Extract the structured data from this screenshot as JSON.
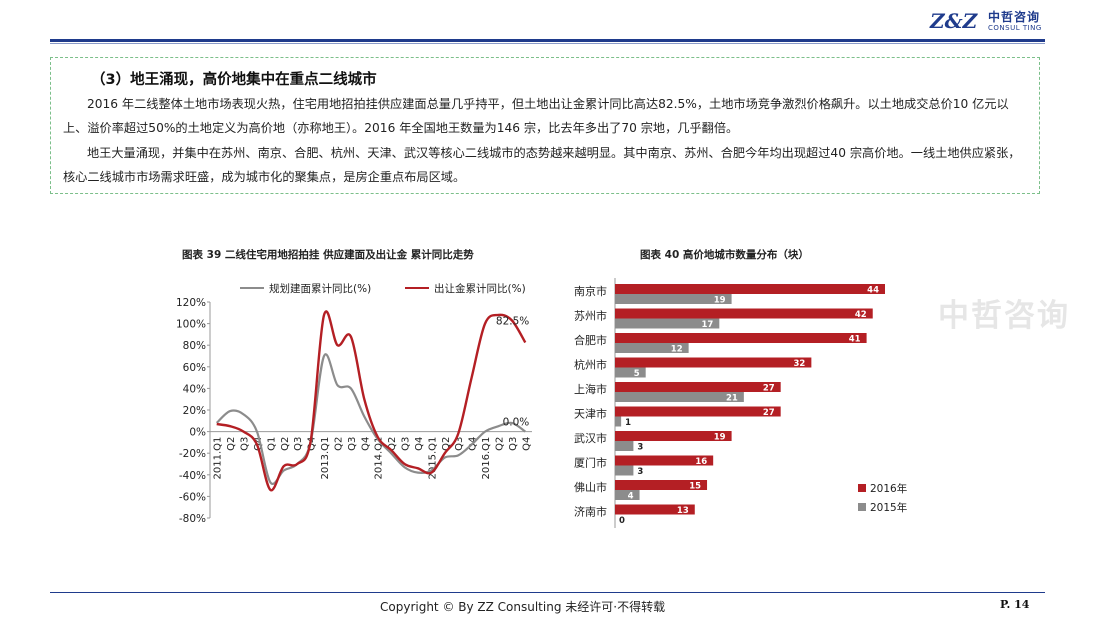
{
  "header": {
    "logo_mark": "Z&Z",
    "logo_cn": "中哲咨询",
    "logo_en": "CONSUL TING"
  },
  "section": {
    "heading": "（3）地王涌现，高价地集中在重点二线城市",
    "paragraph1": "2016 年二线整体土地市场表现火热，住宅用地招拍挂供应建面总量几乎持平，但土地出让金累计同比高达82.5%，土地市场竞争激烈价格飙升。以土地成交总价10 亿元以上、溢价率超过50%的土地定义为高价地（亦称地王）。2016 年全国地王数量为146 宗，比去年多出了70 宗地，几乎翻倍。",
    "paragraph2": "地王大量涌现，并集中在苏州、南京、合肥、杭州、天津、武汉等核心二线城市的态势越来越明显。其中南京、苏州、合肥今年均出现超过40 宗高价地。一线土地供应紧张，核心二线城市市场需求旺盛，成为城市化的聚集点，是房企重点布局区域。"
  },
  "watermark": "中哲咨询",
  "footer": {
    "copyright": "Copyright © By  ZZ Consulting       未经许可·不得转载",
    "page": "P. 14"
  },
  "colors": {
    "red": "#b41f24",
    "gray": "#8c8c8c",
    "navy": "#1f3b8c"
  },
  "chart_data": [
    {
      "type": "line",
      "title": "图表 39  二线住宅用地招拍挂 供应建面及出让金  累计同比走势",
      "y_ticks": [
        "120%",
        "100%",
        "80%",
        "60%",
        "40%",
        "20%",
        "0%",
        "-20%",
        "-40%",
        "-60%",
        "-80%"
      ],
      "ylim": [
        -80,
        120
      ],
      "x_tick_labels": [
        "2011.Q1",
        "Q2",
        "Q3",
        "Q4",
        "Q1",
        "Q2",
        "Q3",
        "Q4",
        "2013.Q1",
        "Q2",
        "Q3",
        "Q4",
        "2014.Q1",
        "Q2",
        "Q3",
        "Q4",
        "2015.Q1",
        "Q2",
        "Q3",
        "Q4",
        "2016.Q1",
        "Q2",
        "Q3",
        "Q4"
      ],
      "series": [
        {
          "name": "规划建面累计同比(%)",
          "color": "#8c8c8c",
          "values": [
            8,
            19,
            16,
            0,
            -47,
            -36,
            -30,
            -10,
            70,
            43,
            40,
            14,
            -7,
            -20,
            -33,
            -38,
            -36,
            -24,
            -22,
            -12,
            0,
            5,
            8,
            0
          ],
          "end_label": "0.0%"
        },
        {
          "name": "出让金累计同比(%)",
          "color": "#b41f24",
          "values": [
            7,
            5,
            0,
            -12,
            -54,
            -32,
            -30,
            -9,
            108,
            80,
            88,
            30,
            -5,
            -17,
            -30,
            -34,
            -38,
            -20,
            -2,
            50,
            100,
            108,
            103,
            82.5
          ],
          "end_label": "82.5%"
        }
      ]
    },
    {
      "type": "bar",
      "title": "图表 40  高价地城市数量分布（块）",
      "categories": [
        "南京市",
        "苏州市",
        "合肥市",
        "杭州市",
        "上海市",
        "天津市",
        "武汉市",
        "厦门市",
        "佛山市",
        "济南市"
      ],
      "series": [
        {
          "name": "2016年",
          "color": "#b41f24",
          "values": [
            44,
            42,
            41,
            32,
            27,
            27,
            19,
            16,
            15,
            13
          ]
        },
        {
          "name": "2015年",
          "color": "#8c8c8c",
          "values": [
            19,
            17,
            12,
            5,
            21,
            1,
            3,
            3,
            4,
            0
          ]
        }
      ]
    }
  ]
}
